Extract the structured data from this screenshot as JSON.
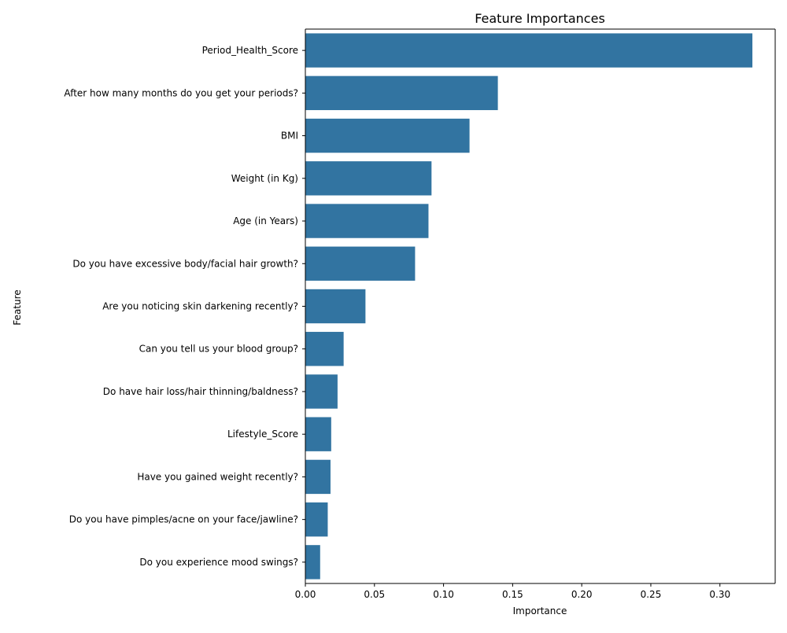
{
  "chart_data": {
    "type": "bar",
    "orientation": "horizontal",
    "title": "Feature Importances",
    "xlabel": "Importance",
    "ylabel": "Feature",
    "xlim": [
      0,
      0.34
    ],
    "xticks": [
      "0.00",
      "0.05",
      "0.10",
      "0.15",
      "0.20",
      "0.25",
      "0.30"
    ],
    "grid": false,
    "bar_color": "#3274a1",
    "categories": [
      "Period_Health_Score",
      "After how many months do you get your periods?",
      "BMI",
      "Weight (in Kg)",
      "Age (in Years)",
      "Do you have excessive body/facial hair growth?",
      "Are you noticing skin darkening recently?",
      "Can you tell us your blood group?",
      "Do have hair loss/hair thinning/baldness?",
      "Lifestyle_Score",
      "Have you gained weight recently?",
      "Do you have pimples/acne on your face/jawline?",
      "Do you experience mood swings?"
    ],
    "values": [
      0.3235,
      0.1393,
      0.1188,
      0.0913,
      0.0891,
      0.0794,
      0.0435,
      0.0277,
      0.0233,
      0.0187,
      0.0182,
      0.0162,
      0.0107
    ]
  }
}
